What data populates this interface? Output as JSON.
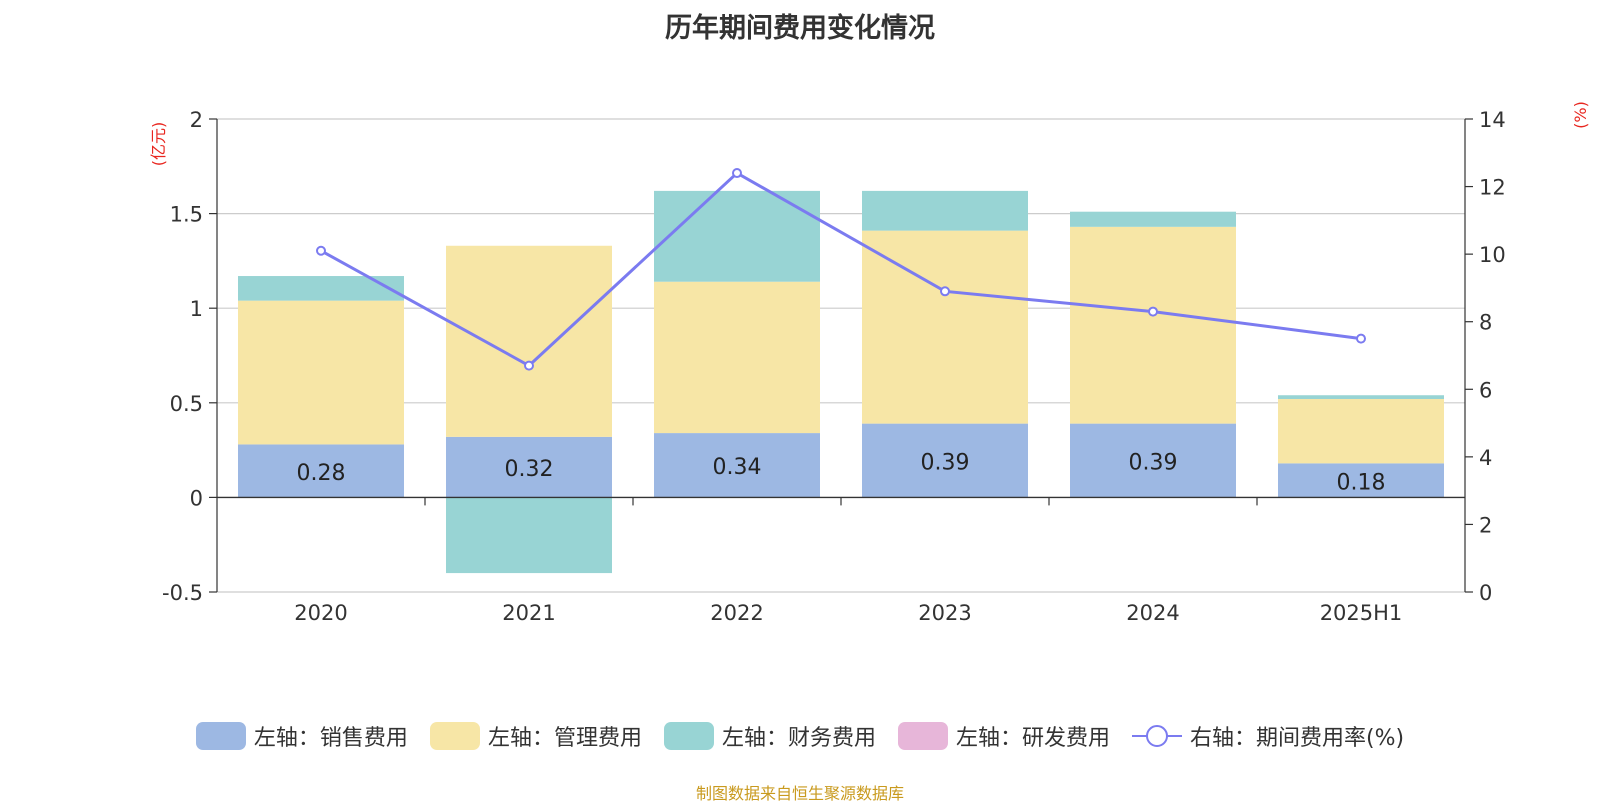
{
  "title": "历年期间费用变化情况",
  "source": "制图数据来自恒生聚源数据库",
  "colors": {
    "sales": "#9db8e3",
    "admin": "#f7e6a6",
    "finance": "#98d4d4",
    "rd": "#e7b6d9",
    "rate": "#7b7bf0"
  },
  "legend": [
    {
      "label": "左轴：销售费用",
      "kind": "box",
      "color": "#9db8e3"
    },
    {
      "label": "左轴：管理费用",
      "kind": "box",
      "color": "#f7e6a6"
    },
    {
      "label": "左轴：财务费用",
      "kind": "box",
      "color": "#98d4d4"
    },
    {
      "label": "左轴：研发费用",
      "kind": "box",
      "color": "#e7b6d9"
    },
    {
      "label": "右轴：期间费用率(%)",
      "kind": "line",
      "color": "#7b7bf0"
    }
  ],
  "chart_data": {
    "type": "bar",
    "title": "历年期间费用变化情况",
    "categories": [
      "2020",
      "2021",
      "2022",
      "2023",
      "2024",
      "2025H1"
    ],
    "y_left": {
      "unit": "(亿元)",
      "range": [
        -0.5,
        2
      ],
      "ticks": [
        "-0.5",
        "0",
        "0.5",
        "1",
        "1.5",
        "2"
      ]
    },
    "y_right": {
      "unit": "(%)",
      "range": [
        0,
        14
      ],
      "ticks": [
        "0",
        "2",
        "4",
        "6",
        "8",
        "10",
        "12",
        "14"
      ]
    },
    "series": [
      {
        "name": "左轴：销售费用",
        "axis": "left",
        "kind": "stack",
        "values": [
          0.28,
          0.32,
          0.34,
          0.39,
          0.39,
          0.18
        ],
        "labels": [
          "0.28",
          "0.32",
          "0.34",
          "0.39",
          "0.39",
          "0.18"
        ]
      },
      {
        "name": "左轴：管理费用",
        "axis": "left",
        "kind": "stack",
        "values": [
          0.76,
          1.01,
          0.8,
          1.02,
          1.04,
          0.34
        ]
      },
      {
        "name": "左轴：财务费用",
        "axis": "left",
        "kind": "stack",
        "values": [
          0.13,
          -0.4,
          0.48,
          0.21,
          0.08,
          0.02
        ]
      },
      {
        "name": "左轴：研发费用",
        "axis": "left",
        "kind": "stack",
        "values": [
          0,
          0,
          0,
          0,
          0,
          0
        ]
      },
      {
        "name": "右轴：期间费用率(%)",
        "axis": "right",
        "kind": "line",
        "values": [
          10.1,
          6.7,
          12.4,
          8.9,
          8.3,
          7.5
        ]
      }
    ],
    "grid": true,
    "legend_position": "bottom"
  }
}
